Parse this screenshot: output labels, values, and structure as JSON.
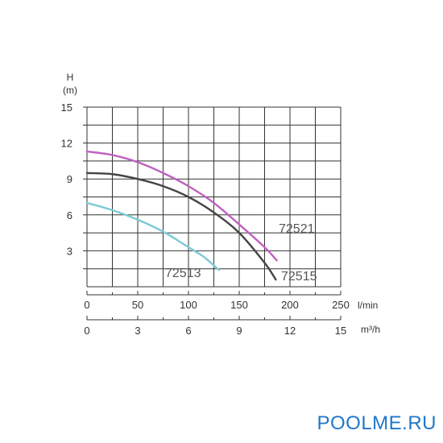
{
  "chart_data": {
    "type": "line",
    "title": "",
    "y_axis": {
      "label_line1": "H",
      "label_line2": "(m)",
      "ylim": [
        0,
        15
      ],
      "ticks": [
        3,
        6,
        9,
        12,
        15
      ]
    },
    "x_axis_primary": {
      "unit": "l/min",
      "xlim": [
        0,
        250
      ],
      "ticks": [
        0,
        50,
        100,
        150,
        200,
        250
      ]
    },
    "x_axis_secondary": {
      "unit": "m³/h",
      "xlim": [
        0,
        15
      ],
      "ticks": [
        0,
        3,
        6,
        9,
        12,
        15
      ]
    },
    "grid": true,
    "series": [
      {
        "name": "72521",
        "color": "#c060c0",
        "x": [
          0,
          25,
          50,
          75,
          100,
          125,
          150,
          175,
          187
        ],
        "y": [
          11.3,
          11.0,
          10.4,
          9.5,
          8.4,
          7.0,
          5.2,
          3.3,
          2.2
        ]
      },
      {
        "name": "72515",
        "color": "#444444",
        "x": [
          0,
          25,
          50,
          75,
          100,
          125,
          150,
          175,
          186
        ],
        "y": [
          9.5,
          9.4,
          9.0,
          8.4,
          7.5,
          6.2,
          4.5,
          2.0,
          0.6
        ]
      },
      {
        "name": "72513",
        "color": "#7ccad6",
        "x": [
          0,
          25,
          50,
          75,
          100,
          115,
          130
        ],
        "y": [
          7.0,
          6.4,
          5.6,
          4.6,
          3.3,
          2.5,
          1.4
        ]
      }
    ]
  },
  "watermark": "POOLME.RU"
}
